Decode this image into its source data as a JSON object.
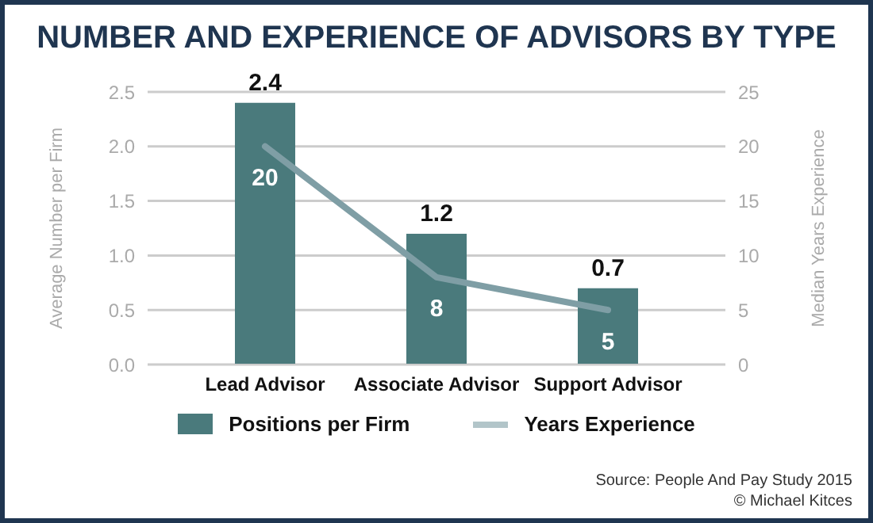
{
  "chart_data": {
    "type": "bar",
    "title": "NUMBER AND EXPERIENCE OF ADVISORS BY TYPE",
    "categories": [
      "Lead Advisor",
      "Associate Advisor",
      "Support Advisor"
    ],
    "series": [
      {
        "name": "Positions per Firm",
        "color": "#4a7a7c",
        "values": [
          2.4,
          1.2,
          0.7
        ]
      },
      {
        "name": "Years Experience",
        "type": "line",
        "axis": "y2",
        "color": "#7f9ea5",
        "values": [
          20,
          8,
          5
        ]
      }
    ],
    "ylabel": "Average Number per Firm",
    "y2label": "Median Years Experience",
    "ylim": [
      0,
      2.5
    ],
    "yticks": [
      {
        "value": 0,
        "label": "0.0"
      },
      {
        "value": 0.5,
        "label": "0.5"
      },
      {
        "value": 1,
        "label": "1.0"
      },
      {
        "value": 1.5,
        "label": "1.5"
      },
      {
        "value": 2,
        "label": "2.0"
      },
      {
        "value": 2.5,
        "label": "2.5"
      }
    ],
    "y2lim": [
      0,
      25
    ],
    "y2ticks": [
      0,
      5,
      10,
      15,
      20,
      25
    ],
    "grid": "y",
    "legend": "bottom",
    "data_labels": true,
    "marker": "none",
    "annotations": [
      "Source: People And Pay Study 2015",
      "© Michael Kitces"
    ]
  }
}
